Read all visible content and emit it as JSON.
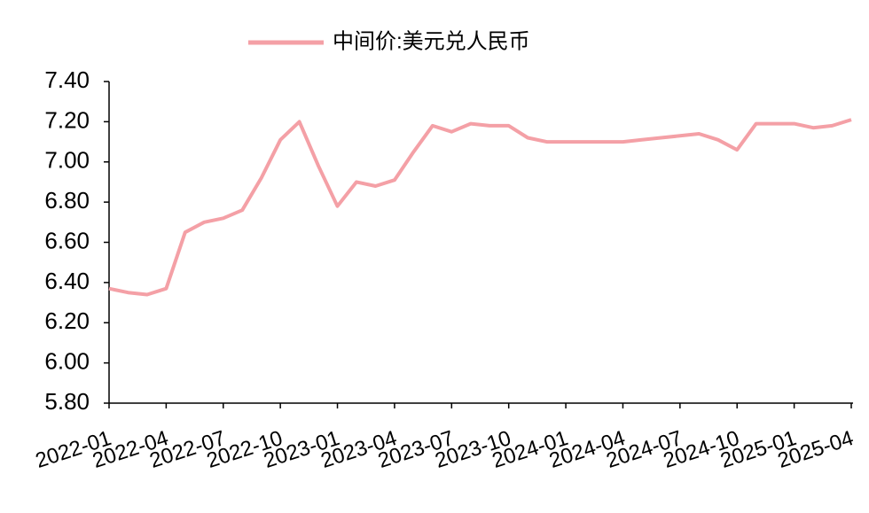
{
  "chart_data": {
    "type": "line",
    "categories": [
      "2022-01",
      null,
      null,
      "2022-04",
      null,
      null,
      "2022-07",
      null,
      null,
      "2022-10",
      null,
      null,
      "2023-01",
      null,
      null,
      "2023-04",
      null,
      null,
      "2023-07",
      null,
      null,
      "2023-10",
      null,
      null,
      "2024-01",
      null,
      null,
      "2024-04",
      null,
      null,
      "2024-07",
      null,
      null,
      "2024-10",
      null,
      null,
      "2025-01",
      null,
      null,
      "2025-04"
    ],
    "series": [
      {
        "name": "中间价:美元兑人民币",
        "color": "#f4a0a6",
        "values": [
          6.37,
          6.35,
          6.34,
          6.37,
          6.65,
          6.7,
          6.72,
          6.76,
          6.92,
          7.11,
          7.2,
          6.98,
          6.78,
          6.9,
          6.88,
          6.91,
          7.05,
          7.18,
          7.15,
          7.19,
          7.18,
          7.18,
          7.12,
          7.1,
          7.1,
          7.1,
          7.1,
          7.1,
          7.11,
          7.12,
          7.13,
          7.14,
          7.11,
          7.06,
          7.19,
          7.19,
          7.19,
          7.17,
          7.18,
          7.21
        ]
      }
    ],
    "ylim": [
      5.8,
      7.4
    ],
    "yticks": [
      {
        "value": 5.8,
        "label": "5.80"
      },
      {
        "value": 6.0,
        "label": "6.00"
      },
      {
        "value": 6.2,
        "label": "6.20"
      },
      {
        "value": 6.4,
        "label": "6.40"
      },
      {
        "value": 6.6,
        "label": "6.60"
      },
      {
        "value": 6.8,
        "label": "6.80"
      },
      {
        "value": 7.0,
        "label": "7.00"
      },
      {
        "value": 7.2,
        "label": "7.20"
      },
      {
        "value": 7.4,
        "label": "7.40"
      }
    ],
    "legend": "top",
    "grid": false
  }
}
